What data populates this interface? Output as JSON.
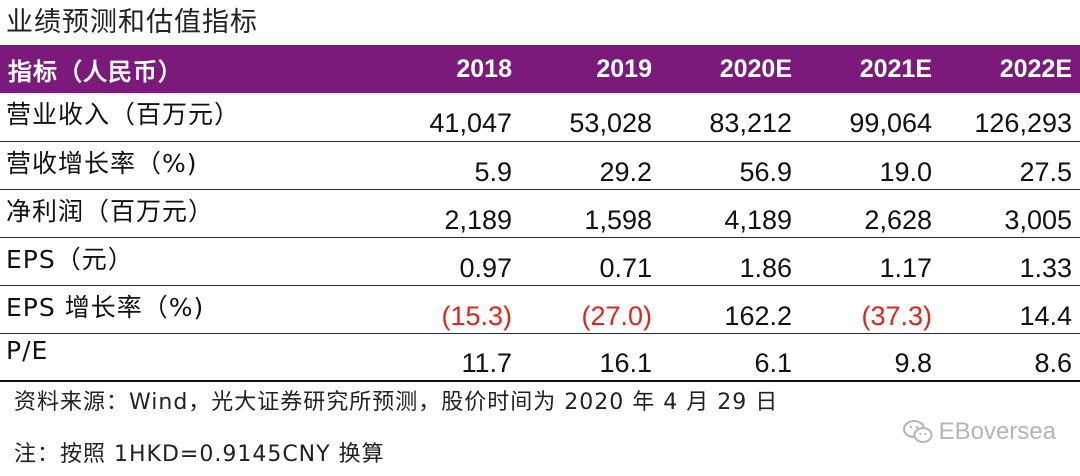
{
  "title": "业绩预测和估值指标",
  "table": {
    "headers": [
      "指标（人民币）",
      "2018",
      "2019",
      "2020E",
      "2021E",
      "2022E"
    ],
    "rows": [
      {
        "label": "营业收入（百万元）",
        "values": [
          "41,047",
          "53,028",
          "83,212",
          "99,064",
          "126,293"
        ]
      },
      {
        "label": "营收增长率（%)",
        "values": [
          "5.9",
          "29.2",
          "56.9",
          "19.0",
          "27.5"
        ]
      },
      {
        "label": "净利润（百万元）",
        "values": [
          "2,189",
          "1,598",
          "4,189",
          "2,628",
          "3,005"
        ]
      },
      {
        "label": "EPS（元）",
        "values": [
          "0.97",
          "0.71",
          "1.86",
          "1.17",
          "1.33"
        ]
      },
      {
        "label": "EPS 增长率（%)",
        "values": [
          "(15.3)",
          "(27.0)",
          "162.2",
          "(37.3)",
          "14.4"
        ]
      },
      {
        "label": "P/E",
        "values": [
          "11.7",
          "16.1",
          "6.1",
          "9.8",
          "8.6"
        ]
      }
    ]
  },
  "source": "资料来源：Wind，光大证券研究所预测，股价时间为 2020 年 4 月 29 日",
  "note": "注：按照 1HKD=0.9145CNY 换算",
  "watermark": {
    "text": "EBoversea",
    "icon": "wechat-icon"
  },
  "colors": {
    "header_bg": "#7b1a7a",
    "header_text": "#ffffff",
    "negative": "#e0241b",
    "watermark": "#b5b5b5"
  }
}
